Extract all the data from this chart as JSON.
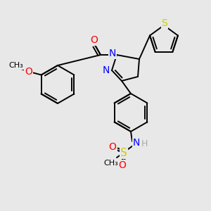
{
  "background_color": "#e8e8e8",
  "bond_color": "#000000",
  "bond_width": 1.4,
  "atom_colors": {
    "N": "#0000ff",
    "O": "#ff0000",
    "S": "#cccc00",
    "C": "#000000",
    "H": "#aaaaaa"
  },
  "font_size": 9,
  "label_bg": "#e8e8e8"
}
